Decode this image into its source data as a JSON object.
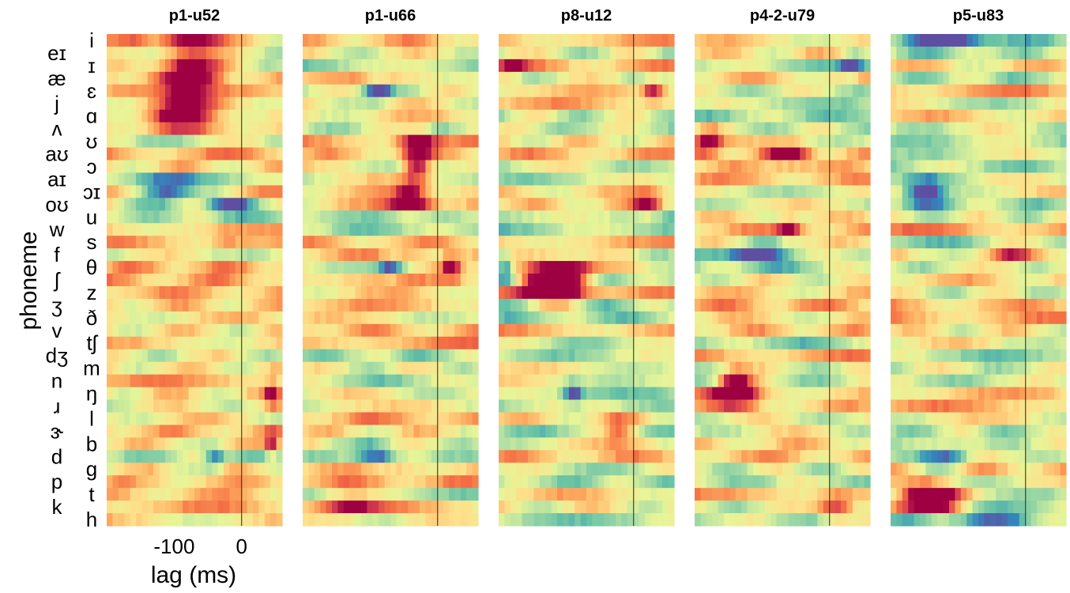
{
  "chart_data": {
    "type": "heatmap",
    "ylabel": "phoneme",
    "xlabel": "lag (ms)",
    "x_ticks": [
      "-100",
      "0"
    ],
    "xlim": [
      -200,
      60
    ],
    "phonemes": [
      "i",
      "eɪ",
      "ɪ",
      "æ",
      "ɛ",
      "j",
      "ɑ",
      "ʌ",
      "ʊ",
      "aʊ",
      "ɔ",
      "aɪ",
      "ɔɪ",
      "oʊ",
      "u",
      "w",
      "s",
      "f",
      "θ",
      "ʃ",
      "z",
      "ʒ",
      "ð",
      "v",
      "tʃ",
      "dʒ",
      "m",
      "n",
      "ŋ",
      "ɹ",
      "l",
      "ɝ",
      "b",
      "d",
      "g",
      "p",
      "t",
      "k",
      "h"
    ],
    "panels": [
      {
        "title": "p1-u52"
      },
      {
        "title": "p1-u66"
      },
      {
        "title": "p8-u12"
      },
      {
        "title": "p4-2-u79"
      },
      {
        "title": "p5-u83"
      }
    ],
    "colormap": [
      "#5e4fa2",
      "#3288bd",
      "#66c2a5",
      "#abdda4",
      "#e6f598",
      "#fee08b",
      "#fdae61",
      "#f46d43",
      "#d53e4f",
      "#9e0142"
    ],
    "hotspots": [
      [
        {
          "r": 0,
          "lag": -80,
          "w": 45,
          "v": 0.85
        },
        {
          "r": 2,
          "lag": -80,
          "w": 45,
          "v": 0.95
        },
        {
          "r": 4,
          "lag": -80,
          "w": 45,
          "v": 1.0
        },
        {
          "r": 6,
          "lag": -90,
          "w": 40,
          "v": 0.9
        },
        {
          "r": 0,
          "lag": -160,
          "w": 25,
          "v": 0.35
        },
        {
          "r": 12,
          "lag": -120,
          "w": 50,
          "v": -0.9
        },
        {
          "r": 13,
          "lag": -20,
          "w": 35,
          "v": -0.8
        },
        {
          "r": 33,
          "lag": -40,
          "w": 15,
          "v": -0.5
        },
        {
          "r": 28,
          "lag": 45,
          "w": 10,
          "v": 0.75
        },
        {
          "r": 32,
          "lag": 45,
          "w": 10,
          "v": 0.6
        },
        {
          "r": 16,
          "lag": -20,
          "w": 25,
          "v": 0.25
        }
      ],
      [
        {
          "r": 8,
          "lag": -30,
          "w": 25,
          "v": 0.9
        },
        {
          "r": 10,
          "lag": -30,
          "w": 20,
          "v": 0.95
        },
        {
          "r": 13,
          "lag": -40,
          "w": 35,
          "v": 1.0
        },
        {
          "r": 12,
          "lag": -40,
          "w": 20,
          "v": 0.5
        },
        {
          "r": 4,
          "lag": -90,
          "w": 20,
          "v": -0.7
        },
        {
          "r": 18,
          "lag": -70,
          "w": 20,
          "v": -0.6
        },
        {
          "r": 18,
          "lag": 20,
          "w": 15,
          "v": 0.75
        },
        {
          "r": 33,
          "lag": -90,
          "w": 30,
          "v": -0.7
        },
        {
          "r": 37,
          "lag": -130,
          "w": 40,
          "v": 0.5
        }
      ],
      [
        {
          "r": 18,
          "lag": -110,
          "w": 45,
          "v": 0.9
        },
        {
          "r": 19,
          "lag": -120,
          "w": 50,
          "v": 1.0
        },
        {
          "r": 20,
          "lag": -120,
          "w": 45,
          "v": 0.9
        },
        {
          "r": 18,
          "lag": -190,
          "w": 12,
          "v": -0.7
        },
        {
          "r": 4,
          "lag": 30,
          "w": 15,
          "v": 0.7
        },
        {
          "r": 2,
          "lag": -180,
          "w": 20,
          "v": 0.5
        },
        {
          "r": 13,
          "lag": 20,
          "w": 20,
          "v": 0.7
        },
        {
          "r": 31,
          "lag": -20,
          "w": 25,
          "v": 0.5
        },
        {
          "r": 28,
          "lag": -90,
          "w": 15,
          "v": -0.6
        }
      ],
      [
        {
          "r": 8,
          "lag": -180,
          "w": 20,
          "v": 0.8
        },
        {
          "r": 9,
          "lag": -60,
          "w": 30,
          "v": 0.7
        },
        {
          "r": 15,
          "lag": -60,
          "w": 20,
          "v": 0.7
        },
        {
          "r": 27,
          "lag": -140,
          "w": 20,
          "v": 0.85
        },
        {
          "r": 28,
          "lag": -140,
          "w": 35,
          "v": 1.0
        },
        {
          "r": 37,
          "lag": 10,
          "w": 30,
          "v": 0.8
        },
        {
          "r": 17,
          "lag": -100,
          "w": 45,
          "v": -0.7
        },
        {
          "r": 2,
          "lag": 30,
          "w": 15,
          "v": -0.5
        }
      ],
      [
        {
          "r": 36,
          "lag": -140,
          "w": 40,
          "v": 1.0
        },
        {
          "r": 37,
          "lag": -140,
          "w": 50,
          "v": 0.9
        },
        {
          "r": 12,
          "lag": -150,
          "w": 30,
          "v": -0.8
        },
        {
          "r": 33,
          "lag": -120,
          "w": 40,
          "v": -0.75
        },
        {
          "r": 0,
          "lag": -110,
          "w": 80,
          "v": -0.55
        },
        {
          "r": 17,
          "lag": -20,
          "w": 30,
          "v": 0.5
        },
        {
          "r": 38,
          "lag": -100,
          "w": 120,
          "v": -0.55
        }
      ]
    ]
  }
}
